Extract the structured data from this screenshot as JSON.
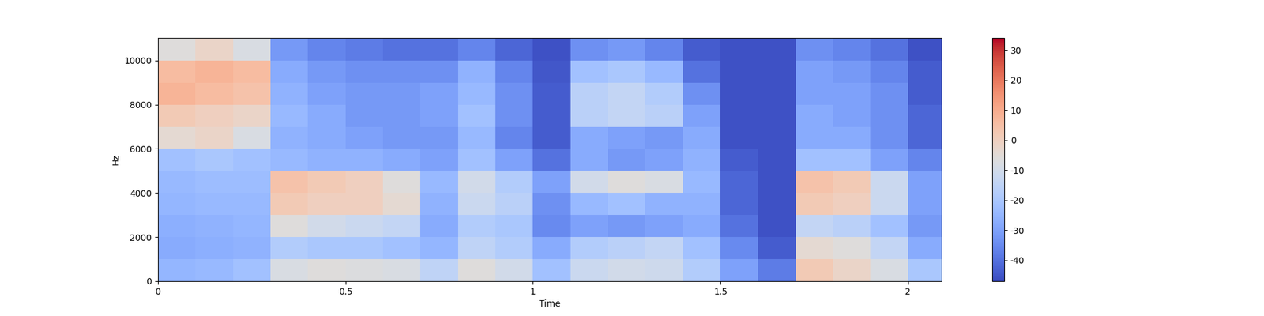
{
  "chart_data": {
    "type": "heatmap",
    "xlabel": "Time",
    "ylabel": "Hz",
    "x_edges": [
      0,
      0.1,
      0.2,
      0.3,
      0.4,
      0.5,
      0.6,
      0.7,
      0.8,
      0.9,
      1.0,
      1.1,
      1.2,
      1.3,
      1.4,
      1.5,
      1.6,
      1.7,
      1.8,
      1.9,
      2.0,
      2.09
    ],
    "y_edges": [
      0,
      1000,
      2000,
      3000,
      4000,
      5000,
      6000,
      7000,
      8000,
      9000,
      10000,
      11025
    ],
    "cells": [
      [
        -25,
        -24,
        -22,
        -8,
        -6,
        -7,
        -8,
        -15,
        -6,
        -10,
        -22,
        -12,
        -10,
        -11,
        -18,
        -30,
        -38,
        2,
        -2,
        -8,
        -20
      ],
      [
        -28,
        -27,
        -26,
        -18,
        -20,
        -20,
        -22,
        -25,
        -15,
        -18,
        -28,
        -18,
        -16,
        -14,
        -22,
        -35,
        -44,
        -4,
        -6,
        -14,
        -28
      ],
      [
        -27,
        -26,
        -25,
        -6,
        -10,
        -12,
        -14,
        -28,
        -18,
        -20,
        -35,
        -30,
        -32,
        -30,
        -28,
        -40,
        -46,
        -14,
        -16,
        -22,
        -32
      ],
      [
        -25,
        -24,
        -24,
        2,
        0,
        0,
        -4,
        -26,
        -12,
        -16,
        -34,
        -24,
        -22,
        -26,
        -26,
        -42,
        -46,
        2,
        0,
        -12,
        -30
      ],
      [
        -24,
        -23,
        -23,
        4,
        2,
        0,
        -6,
        -24,
        -10,
        -18,
        -30,
        -10,
        -6,
        -8,
        -24,
        -42,
        -46,
        4,
        2,
        -12,
        -30
      ],
      [
        -22,
        -20,
        -22,
        -24,
        -26,
        -26,
        -28,
        -30,
        -22,
        -30,
        -40,
        -28,
        -32,
        -30,
        -26,
        -44,
        -46,
        -22,
        -22,
        -30,
        -36
      ],
      [
        -4,
        -2,
        -8,
        -26,
        -28,
        -30,
        -32,
        -32,
        -24,
        -36,
        -44,
        -28,
        -30,
        -32,
        -28,
        -46,
        -46,
        -28,
        -28,
        -34,
        -42
      ],
      [
        2,
        0,
        -2,
        -24,
        -28,
        -32,
        -32,
        -30,
        -22,
        -34,
        -44,
        -16,
        -14,
        -16,
        -30,
        -46,
        -46,
        -28,
        -30,
        -34,
        -42
      ],
      [
        8,
        6,
        4,
        -26,
        -30,
        -32,
        -32,
        -30,
        -24,
        -34,
        -44,
        -16,
        -14,
        -18,
        -34,
        -46,
        -46,
        -30,
        -30,
        -34,
        -44
      ],
      [
        6,
        8,
        6,
        -28,
        -32,
        -34,
        -34,
        -34,
        -26,
        -36,
        -45,
        -22,
        -20,
        -24,
        -40,
        -46,
        -46,
        -30,
        -32,
        -36,
        -44
      ],
      [
        -6,
        -2,
        -8,
        -32,
        -36,
        -38,
        -40,
        -40,
        -36,
        -42,
        -46,
        -34,
        -32,
        -36,
        -44,
        -46,
        -46,
        -34,
        -36,
        -40,
        -46
      ]
    ],
    "xlim": [
      0,
      2.09
    ],
    "ylim": [
      0,
      11025
    ],
    "xticks": [
      0,
      0.5,
      1,
      1.5,
      2
    ],
    "yticks": [
      0,
      2000,
      4000,
      6000,
      8000,
      10000
    ],
    "colorbar_range": [
      -47,
      34
    ],
    "colorbar_ticks": [
      -40,
      -30,
      -20,
      -10,
      0,
      10,
      20,
      30
    ]
  }
}
